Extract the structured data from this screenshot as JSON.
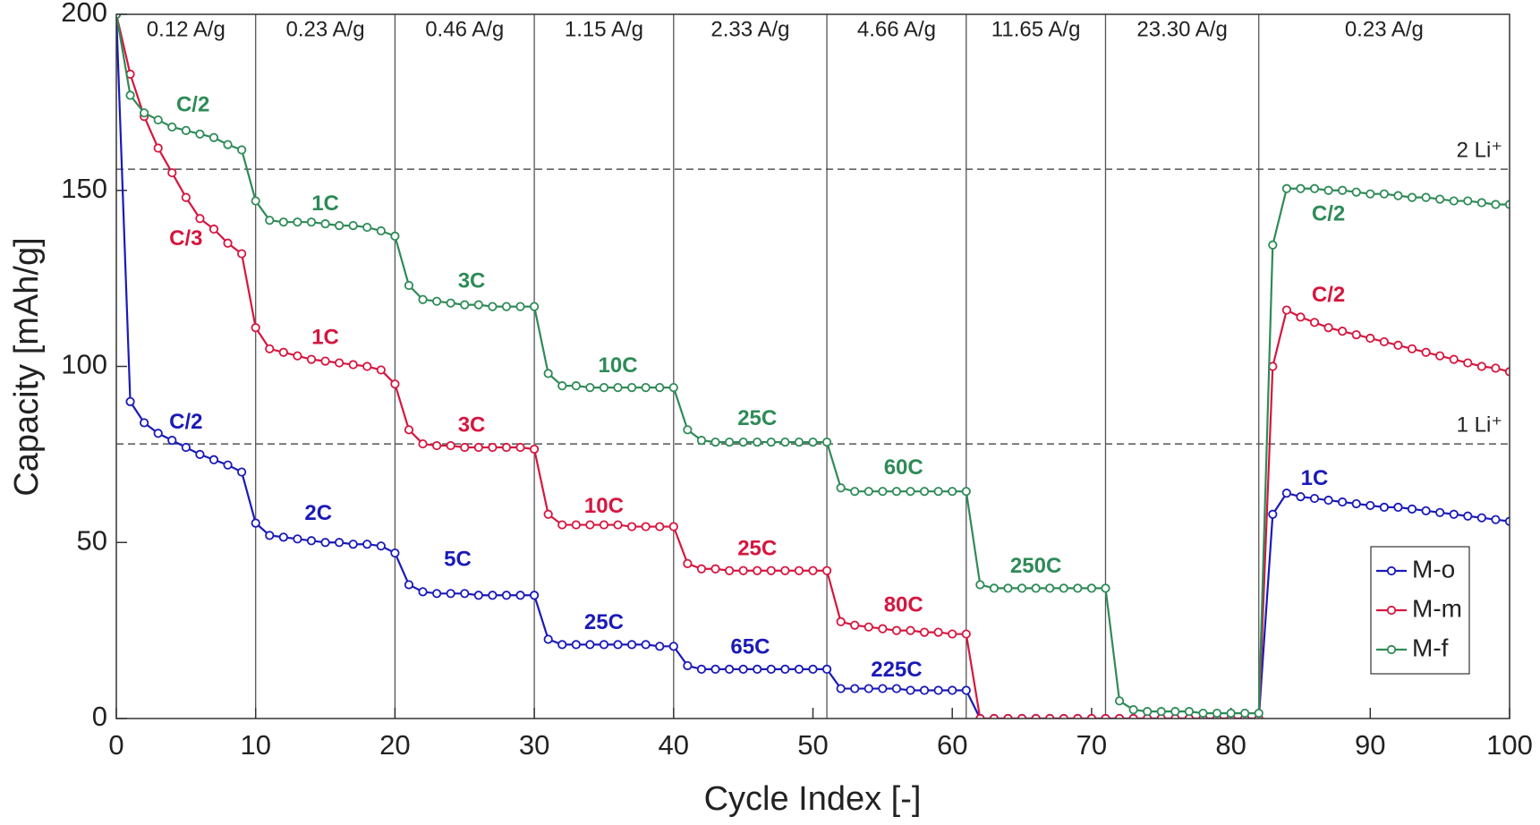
{
  "chart_data": {
    "type": "line",
    "xlabel": "Cycle Index [-]",
    "ylabel": "Capacity [mAh/g]",
    "x": [
      0,
      1,
      2,
      3,
      4,
      5,
      6,
      7,
      8,
      9,
      10,
      11,
      12,
      13,
      14,
      15,
      16,
      17,
      18,
      19,
      20,
      21,
      22,
      23,
      24,
      25,
      26,
      27,
      28,
      29,
      30,
      31,
      32,
      33,
      34,
      35,
      36,
      37,
      38,
      39,
      40,
      41,
      42,
      43,
      44,
      45,
      46,
      47,
      48,
      49,
      50,
      51,
      52,
      53,
      54,
      55,
      56,
      57,
      58,
      59,
      60,
      61,
      62,
      63,
      64,
      65,
      66,
      67,
      68,
      69,
      70,
      71,
      72,
      73,
      74,
      75,
      76,
      77,
      78,
      79,
      80,
      81,
      82,
      83,
      84,
      85,
      86,
      87,
      88,
      89,
      90,
      91,
      92,
      93,
      94,
      95,
      96,
      97,
      98,
      99,
      100
    ],
    "series": [
      {
        "name": "M-o",
        "color": "#1a1ab8",
        "values": [
          200,
          90,
          84,
          81,
          79,
          77,
          75,
          73.5,
          72,
          70,
          55.5,
          52,
          51.5,
          51,
          50.5,
          50,
          50,
          49.5,
          49.5,
          49,
          47,
          38,
          36,
          35.5,
          35.5,
          35.5,
          35,
          35,
          35,
          35,
          35,
          22.5,
          21,
          21,
          21,
          21,
          21,
          21,
          21,
          20.5,
          20.5,
          15,
          14,
          14,
          14,
          14,
          14,
          14,
          14,
          14,
          14,
          14,
          8.5,
          8.5,
          8.5,
          8.5,
          8.5,
          8,
          8,
          8,
          8,
          8,
          0,
          0,
          0,
          0,
          0,
          0,
          0,
          0,
          0,
          0,
          0,
          0,
          0,
          0,
          0,
          0,
          0,
          0,
          0,
          0,
          0,
          58,
          64,
          63,
          62.5,
          62,
          61.5,
          61,
          60.5,
          60,
          60,
          59.5,
          59,
          58.5,
          58,
          57.5,
          57,
          56.5,
          56
        ]
      },
      {
        "name": "M-m",
        "color": "#d6163f",
        "values": [
          200,
          183,
          171,
          162,
          155,
          148,
          142,
          139,
          135,
          132,
          111,
          105,
          104,
          103,
          102,
          101.5,
          101,
          100.5,
          100,
          99,
          95,
          82,
          78,
          77.5,
          77.5,
          77,
          77,
          77,
          77,
          77,
          76.5,
          58,
          55,
          55,
          55,
          55,
          55,
          54.5,
          54.5,
          54.5,
          54.5,
          44,
          42.5,
          42.5,
          42,
          42,
          42,
          42,
          42,
          42,
          42,
          42,
          27.5,
          26.5,
          26,
          25.5,
          25,
          25,
          24.5,
          24.5,
          24,
          24,
          0,
          0,
          0,
          0,
          0,
          0,
          0,
          0,
          0,
          0,
          0,
          0,
          0,
          0,
          0,
          0,
          0,
          0,
          0,
          0,
          0,
          100,
          116,
          114,
          112.5,
          111,
          110,
          109,
          108,
          107,
          106,
          105,
          104,
          103,
          102,
          101,
          100,
          99.5,
          98.5
        ]
      },
      {
        "name": "M-f",
        "color": "#2e8b57",
        "values": [
          200,
          177,
          172,
          170,
          168,
          167,
          166,
          165,
          163,
          161.5,
          147,
          141.5,
          141,
          141,
          141,
          140.5,
          140,
          140,
          139.5,
          138.5,
          137,
          123,
          119,
          118.5,
          118,
          117.5,
          117.5,
          117,
          117,
          117,
          117,
          98,
          94.5,
          94.5,
          94,
          94,
          94,
          94,
          94,
          94,
          94,
          82,
          79,
          78.5,
          78.5,
          78.5,
          78.5,
          78.5,
          78.5,
          78.5,
          78.5,
          78.5,
          65.5,
          64.5,
          64.5,
          64.5,
          64.5,
          64.5,
          64.5,
          64.5,
          64.5,
          64.5,
          38,
          37,
          37,
          37,
          37,
          37,
          37,
          37,
          37,
          37,
          5,
          2.5,
          2,
          2,
          2,
          2,
          1.5,
          1.5,
          1.5,
          1.5,
          1.5,
          134.5,
          150.5,
          150.5,
          150.5,
          150,
          150,
          149.5,
          149,
          149,
          148.5,
          148,
          148,
          147.5,
          147,
          147,
          146.5,
          146,
          146
        ]
      }
    ],
    "xlim": [
      0,
      100
    ],
    "ylim": [
      0,
      200
    ],
    "xticks": [
      0,
      10,
      20,
      30,
      40,
      50,
      60,
      70,
      80,
      90,
      100
    ],
    "yticks": [
      0,
      50,
      100,
      150,
      200
    ],
    "legend": "lower right",
    "reference_lines": [
      {
        "value": 156,
        "label": "2 Li⁺"
      },
      {
        "value": 78,
        "label": "1 Li⁺"
      }
    ],
    "regions": {
      "boundaries": [
        10,
        20,
        30,
        40,
        51,
        61,
        71,
        82
      ],
      "labels": [
        "0.12 A/g",
        "0.23 A/g",
        "0.46 A/g",
        "1.15 A/g",
        "2.33 A/g",
        "4.66 A/g",
        "11.65 A/g",
        "23.30 A/g",
        "0.23 A/g"
      ]
    },
    "annotations": [
      {
        "text": "C/2",
        "x": 5,
        "y": 84,
        "series": 0
      },
      {
        "text": "2C",
        "x": 14.5,
        "y": 58,
        "series": 0
      },
      {
        "text": "5C",
        "x": 24.5,
        "y": 45,
        "series": 0
      },
      {
        "text": "25C",
        "x": 35,
        "y": 27,
        "series": 0
      },
      {
        "text": "65C",
        "x": 45.5,
        "y": 20,
        "series": 0
      },
      {
        "text": "225C",
        "x": 56,
        "y": 13.5,
        "series": 0
      },
      {
        "text": "1C",
        "x": 86,
        "y": 68,
        "series": 0
      },
      {
        "text": "C/3",
        "x": 5,
        "y": 136,
        "series": 1
      },
      {
        "text": "1C",
        "x": 15,
        "y": 108,
        "series": 1
      },
      {
        "text": "3C",
        "x": 25.5,
        "y": 83,
        "series": 1
      },
      {
        "text": "10C",
        "x": 35,
        "y": 60,
        "series": 1
      },
      {
        "text": "25C",
        "x": 46,
        "y": 48,
        "series": 1
      },
      {
        "text": "80C",
        "x": 56.5,
        "y": 32,
        "series": 1
      },
      {
        "text": "C/2",
        "x": 87,
        "y": 120,
        "series": 1
      },
      {
        "text": "C/2",
        "x": 5.5,
        "y": 174,
        "series": 2
      },
      {
        "text": "1C",
        "x": 15,
        "y": 146,
        "series": 2
      },
      {
        "text": "3C",
        "x": 25.5,
        "y": 124,
        "series": 2
      },
      {
        "text": "10C",
        "x": 36,
        "y": 100,
        "series": 2
      },
      {
        "text": "25C",
        "x": 46,
        "y": 85,
        "series": 2
      },
      {
        "text": "60C",
        "x": 56.5,
        "y": 71,
        "series": 2
      },
      {
        "text": "250C",
        "x": 66,
        "y": 43,
        "series": 2
      },
      {
        "text": "C/2",
        "x": 87,
        "y": 143,
        "series": 2
      }
    ]
  }
}
